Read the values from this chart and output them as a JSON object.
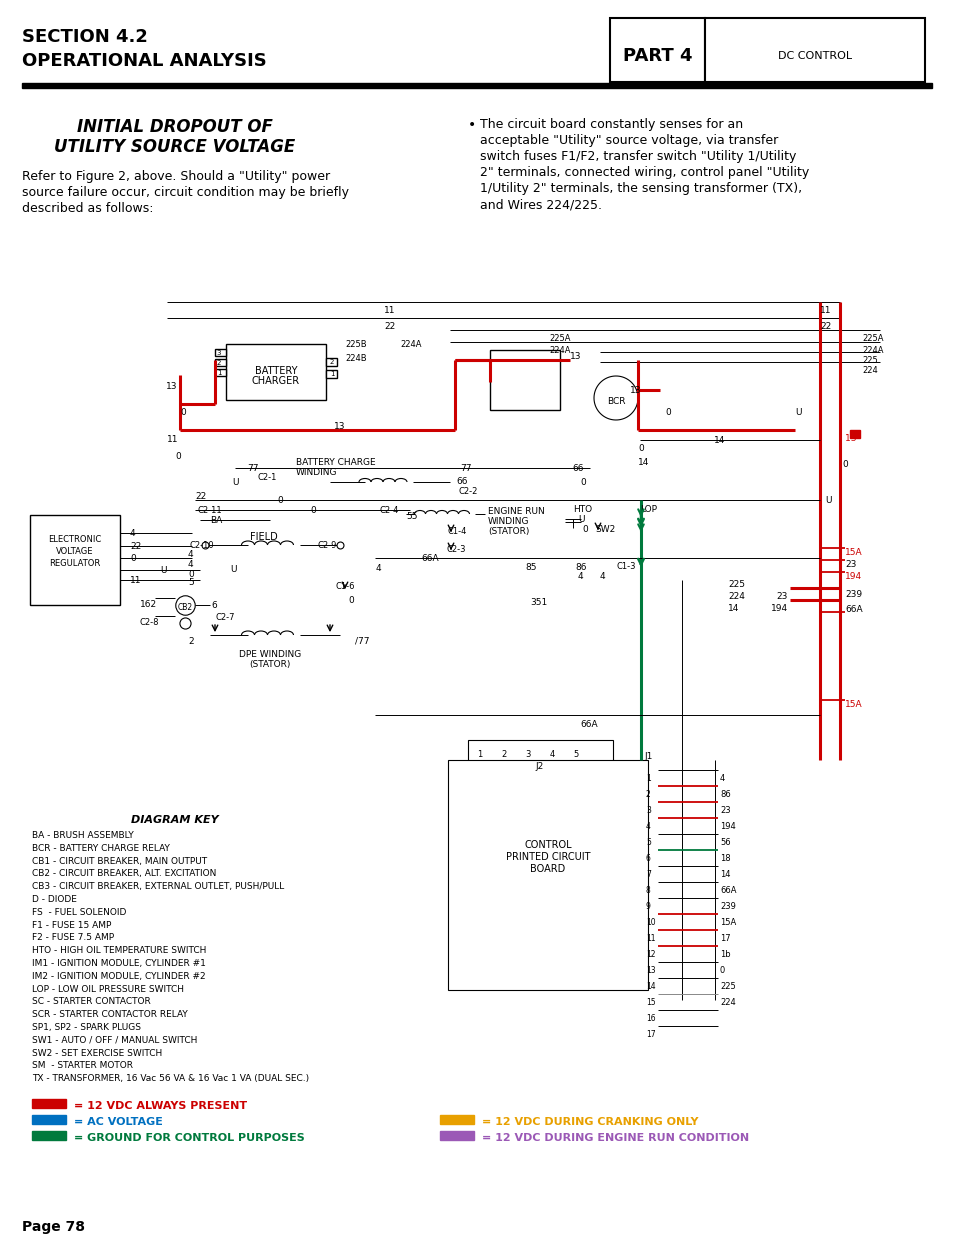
{
  "page_title_left_line1": "SECTION 4.2",
  "page_title_left_line2": "OPERATIONAL ANALYSIS",
  "page_title_right_label": "PART 4",
  "page_title_right_sub": "DC CONTROL",
  "section_title_line1": "INITIAL DROPOUT OF",
  "section_title_line2": "UTILITY SOURCE VOLTAGE",
  "left_para_lines": [
    "Refer to Figure 2, above. Should a \"Utility\" power",
    "source failure occur, circuit condition may be briefly",
    "described as follows:"
  ],
  "right_bullet_lines": [
    "The circuit board constantly senses for an",
    "acceptable \"Utility\" source voltage, via transfer",
    "switch fuses F1/F2, transfer switch \"Utility 1/Utility",
    "2\" terminals, connected wiring, control panel \"Utility",
    "1/Utility 2\" terminals, the sensing transformer (TX),",
    "and Wires 224/225."
  ],
  "diagram_key_title": "DIAGRAM KEY",
  "diagram_key_items": [
    "BA - BRUSH ASSEMBLY",
    "BCR - BATTERY CHARGE RELAY",
    "CB1 - CIRCUIT BREAKER, MAIN OUTPUT",
    "CB2 - CIRCUIT BREAKER, ALT. EXCITATION",
    "CB3 - CIRCUIT BREAKER, EXTERNAL OUTLET, PUSH/PULL",
    "D - DIODE",
    "FS  - FUEL SOLENOID",
    "F1 - FUSE 15 AMP",
    "F2 - FUSE 7.5 AMP",
    "HTO - HIGH OIL TEMPERATURE SWITCH",
    "IM1 - IGNITION MODULE, CYLINDER #1",
    "IM2 - IGNITION MODULE, CYLINDER #2",
    "LOP - LOW OIL PRESSURE SWITCH",
    "SC - STARTER CONTACTOR",
    "SCR - STARTER CONTACTOR RELAY",
    "SP1, SP2 - SPARK PLUGS",
    "SW1 - AUTO / OFF / MANUAL SWITCH",
    "SW2 - SET EXERCISE SWITCH",
    "SM  - STARTER MOTOR",
    "TX - TRANSFORMER, 16 Vac 56 VA & 16 Vac 1 VA (DUAL SEC.)"
  ],
  "legend_items": [
    {
      "color": "#cc0000",
      "text": "= 12 VDC ALWAYS PRESENT",
      "col": 0
    },
    {
      "color": "#0070c0",
      "text": "= AC VOLTAGE",
      "col": 0
    },
    {
      "color": "#007a3d",
      "text": "= GROUND FOR CONTROL PURPOSES",
      "col": 0
    },
    {
      "color": "#e8a000",
      "text": "= 12 VDC DURING CRANKING ONLY",
      "col": 1
    },
    {
      "color": "#9b59b6",
      "text": "= 12 VDC DURING ENGINE RUN CONDITION",
      "col": 1
    }
  ],
  "page_number": "Page 78",
  "bg_color": "#ffffff",
  "c_red": "#cc0000",
  "c_blue": "#0070c0",
  "c_green": "#007a3d",
  "c_orange": "#e8a000",
  "c_purple": "#9b59b6",
  "c_black": "#000000",
  "c_gray": "#888888"
}
